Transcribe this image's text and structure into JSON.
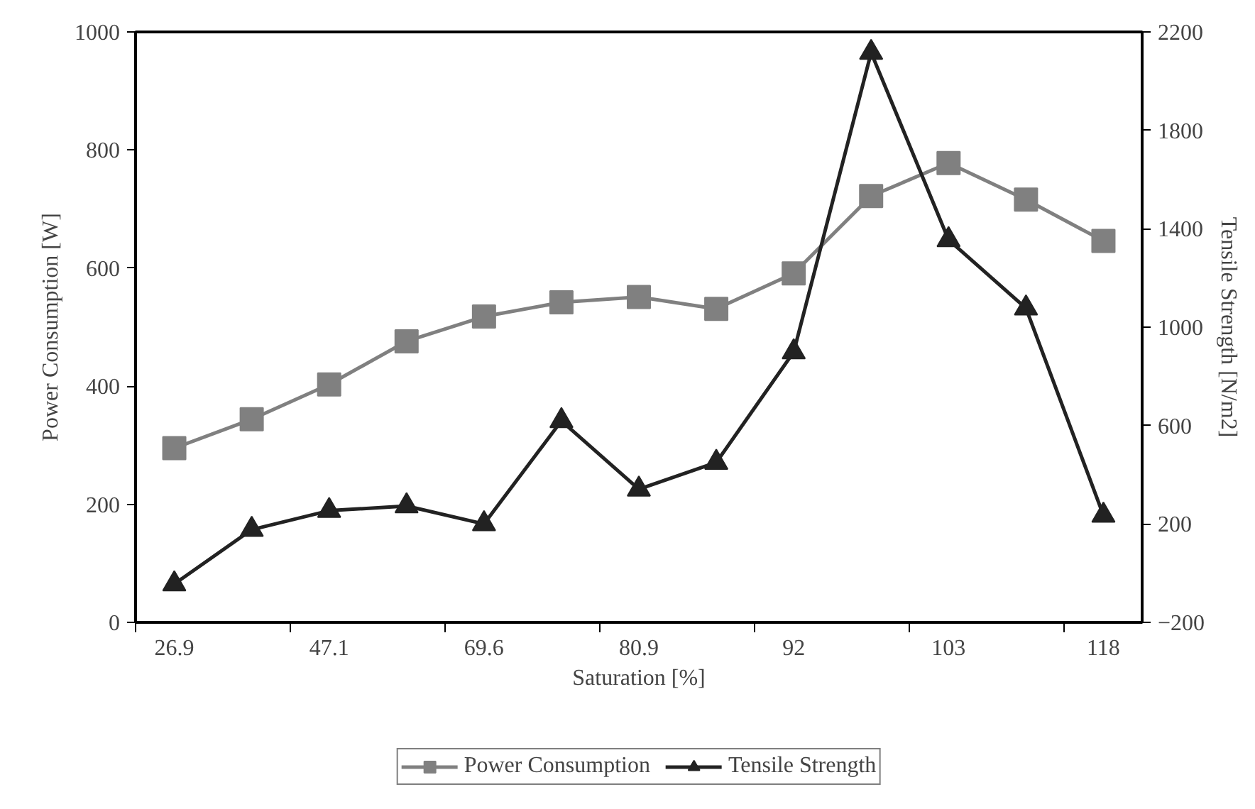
{
  "chart_data": {
    "type": "line",
    "xlabel": "Saturation [%]",
    "ylabel": "Power Consumption [W]",
    "y2label": "Tensile Strength [N/m2]",
    "categories": [
      "26.9",
      null,
      "47.1",
      null,
      "69.6",
      null,
      "80.9",
      null,
      "92",
      null,
      "103",
      null,
      "118"
    ],
    "ylim": [
      0,
      1000
    ],
    "yticks": [
      0,
      200,
      400,
      600,
      800,
      1000
    ],
    "y2lim": [
      -200,
      2200
    ],
    "y2ticks": [
      -200,
      200,
      600,
      1000,
      1400,
      1800,
      2200
    ],
    "grid": false,
    "legend": "bottom",
    "line_style": "solid",
    "series": [
      {
        "name": "Power Consumption",
        "color": "#808080",
        "marker": "square",
        "values": [
          295,
          344,
          403,
          476,
          518,
          542,
          551,
          531,
          591,
          722,
          778,
          716,
          646
        ]
      },
      {
        "name": "Tensile Strength",
        "color": "#222222",
        "marker": "triangle",
        "axis": "y2",
        "values": [
          -44,
          177,
          254,
          273,
          200,
          619,
          341,
          450,
          899,
          2116,
          1355,
          1077,
          235
        ]
      }
    ]
  }
}
